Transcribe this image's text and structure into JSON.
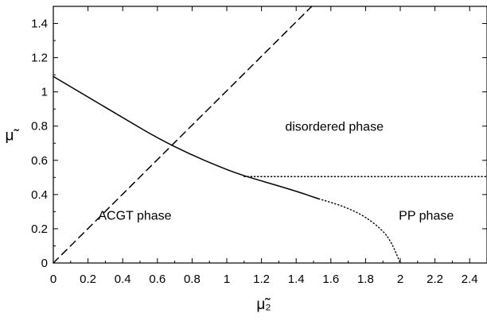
{
  "chart_data": {
    "type": "line",
    "title": "",
    "xlabel": "μ̃₂",
    "ylabel": "μ̃",
    "xlim": [
      0,
      2.5
    ],
    "ylim": [
      0,
      1.5
    ],
    "grid": false,
    "legend": "none",
    "xticks": [
      0,
      0.2,
      0.4,
      0.6,
      0.8,
      1,
      1.2,
      1.4,
      1.6,
      1.8,
      2,
      2.2,
      2.4
    ],
    "xtick_labels": [
      "0",
      "0.2",
      "0.4",
      "0.6",
      "0.8",
      "1",
      "1.2",
      "1.4",
      "1.6",
      "1.8",
      "2",
      "2.2",
      "2.4"
    ],
    "yticks": [
      0,
      0.2,
      0.4,
      0.6,
      0.8,
      1,
      1.2,
      1.4
    ],
    "ytick_labels": [
      "0",
      "0.2",
      "0.4",
      "0.6",
      "0.8",
      "1",
      "1.2",
      "1.4"
    ],
    "series": [
      {
        "style": "dashed",
        "color": "#000000",
        "x": [
          0,
          1.49
        ],
        "y": [
          0,
          1.5
        ]
      },
      {
        "style": "solid",
        "color": "#000000",
        "x": [
          0,
          0.2,
          0.4,
          0.6,
          0.8,
          1.0,
          1.1,
          1.2,
          1.4,
          1.53
        ],
        "y": [
          1.09,
          0.97,
          0.85,
          0.73,
          0.63,
          0.545,
          0.51,
          0.48,
          0.42,
          0.375
        ]
      },
      {
        "style": "dotted",
        "color": "#000000",
        "x": [
          1.53,
          1.6,
          1.7,
          1.8,
          1.9,
          1.95,
          2.0
        ],
        "y": [
          0.375,
          0.355,
          0.32,
          0.27,
          0.19,
          0.12,
          0.0
        ]
      },
      {
        "style": "dotted",
        "color": "#000000",
        "x": [
          1.1,
          1.5,
          2.0,
          2.5
        ],
        "y": [
          0.505,
          0.505,
          0.505,
          0.505
        ]
      }
    ],
    "annotations": [
      {
        "text": "disordered phase",
        "x": 1.62,
        "y": 0.8
      },
      {
        "text": "ACGT phase",
        "x": 0.47,
        "y": 0.28
      },
      {
        "text": "PP phase",
        "x": 2.15,
        "y": 0.28
      }
    ]
  }
}
